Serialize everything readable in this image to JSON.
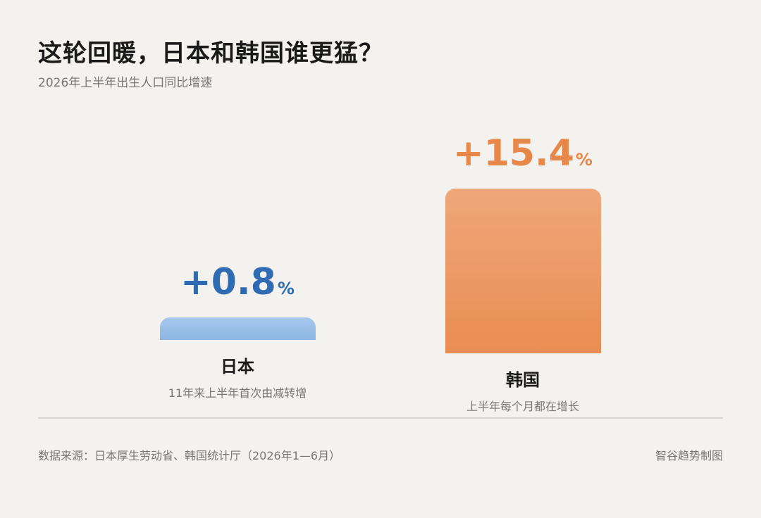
{
  "header": {
    "title": "这轮回暖，日本和韩国谁更猛？",
    "subtitle": "2026年上半年出生人口同比增速"
  },
  "chart_data": {
    "type": "bar",
    "categories": [
      "日本",
      "韩国"
    ],
    "values": [
      0.8,
      15.4
    ],
    "value_labels": [
      "+0.8",
      "+15.4"
    ],
    "unit": "%",
    "notes": [
      "11年来上半年首次由减转增",
      "上半年每个月都在增长"
    ],
    "colors": [
      "#8db6e3",
      "#e98d52"
    ],
    "value_colors": [
      "#2f6bb3",
      "#e8874a"
    ]
  },
  "footer": {
    "source": "数据来源：日本厚生劳动省、韩国统计厅（2026年1—6月）",
    "brand": "智谷趋势制图"
  }
}
